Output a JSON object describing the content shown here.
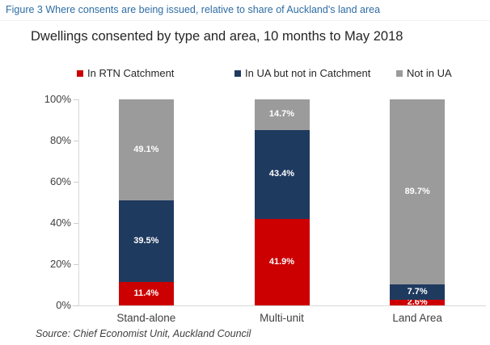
{
  "caption": "Figure 3 Where consents are being issued, relative to share of Auckland's land area",
  "source": "Source: Chief Economist Unit, Auckland Council",
  "chart_data": {
    "type": "bar",
    "stacked": true,
    "title": "Dwellings consented by type and area, 10 months to May 2018",
    "categories": [
      "Stand-alone",
      "Multi-unit",
      "Land Area"
    ],
    "series": [
      {
        "name": "In RTN Catchment",
        "color": "#CC0000",
        "values": [
          11.4,
          41.9,
          2.6
        ]
      },
      {
        "name": "In UA but not in Catchment",
        "color": "#1F3A5F",
        "values": [
          39.5,
          43.4,
          7.7
        ]
      },
      {
        "name": "Not in UA",
        "color": "#9B9B9B",
        "values": [
          49.1,
          14.7,
          89.7
        ]
      }
    ],
    "value_suffix": "%",
    "y_ticks": [
      "0%",
      "20%",
      "40%",
      "60%",
      "80%",
      "100%"
    ],
    "ylim": [
      0,
      100
    ],
    "grid": false,
    "legend_position": "top",
    "xlabel": "",
    "ylabel": ""
  }
}
